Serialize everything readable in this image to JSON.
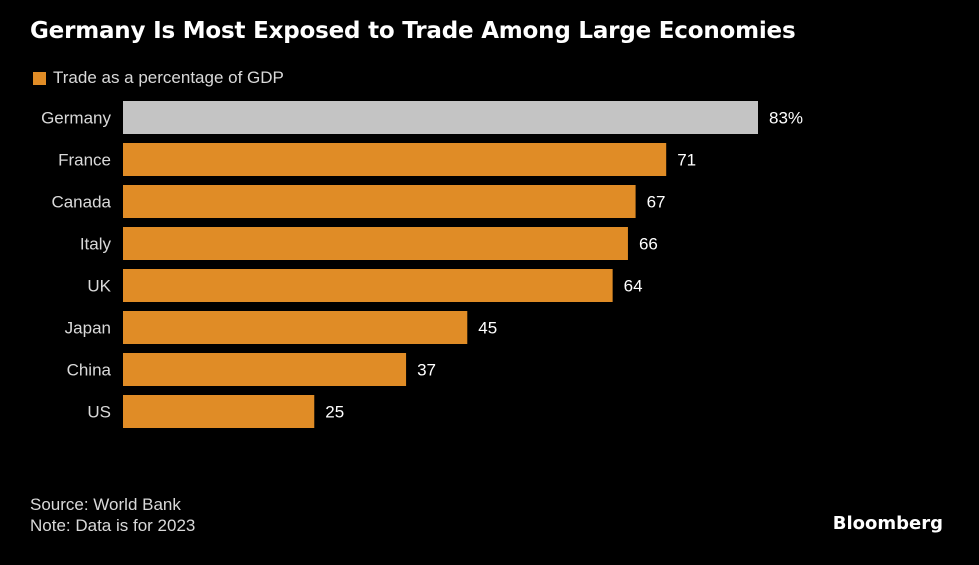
{
  "title": "Germany Is Most Exposed to Trade Among Large Economies",
  "legend": {
    "label": "Trade as a percentage of GDP"
  },
  "colors": {
    "background": "#000000",
    "highlight": "#c4c4c4",
    "bar": "#e08c26",
    "text": "#ffffff",
    "muted_text": "#d9d9d9"
  },
  "chart_data": {
    "type": "bar",
    "orientation": "horizontal",
    "categories": [
      "Germany",
      "France",
      "Canada",
      "Italy",
      "UK",
      "Japan",
      "China",
      "US"
    ],
    "values": [
      83,
      71,
      67,
      66,
      64,
      45,
      37,
      25
    ],
    "value_labels": [
      "83%",
      "71",
      "67",
      "66",
      "64",
      "45",
      "37",
      "25"
    ],
    "highlight_category": "Germany",
    "series": [
      {
        "name": "Trade as a percentage of GDP",
        "values": [
          83,
          71,
          67,
          66,
          64,
          45,
          37,
          25
        ]
      }
    ],
    "xlim": [
      0,
      83
    ],
    "grid": false,
    "legend_position": "top-left"
  },
  "footer": {
    "source": "Source: World Bank",
    "note": "Note: Data is for 2023"
  },
  "brand": "Bloomberg"
}
